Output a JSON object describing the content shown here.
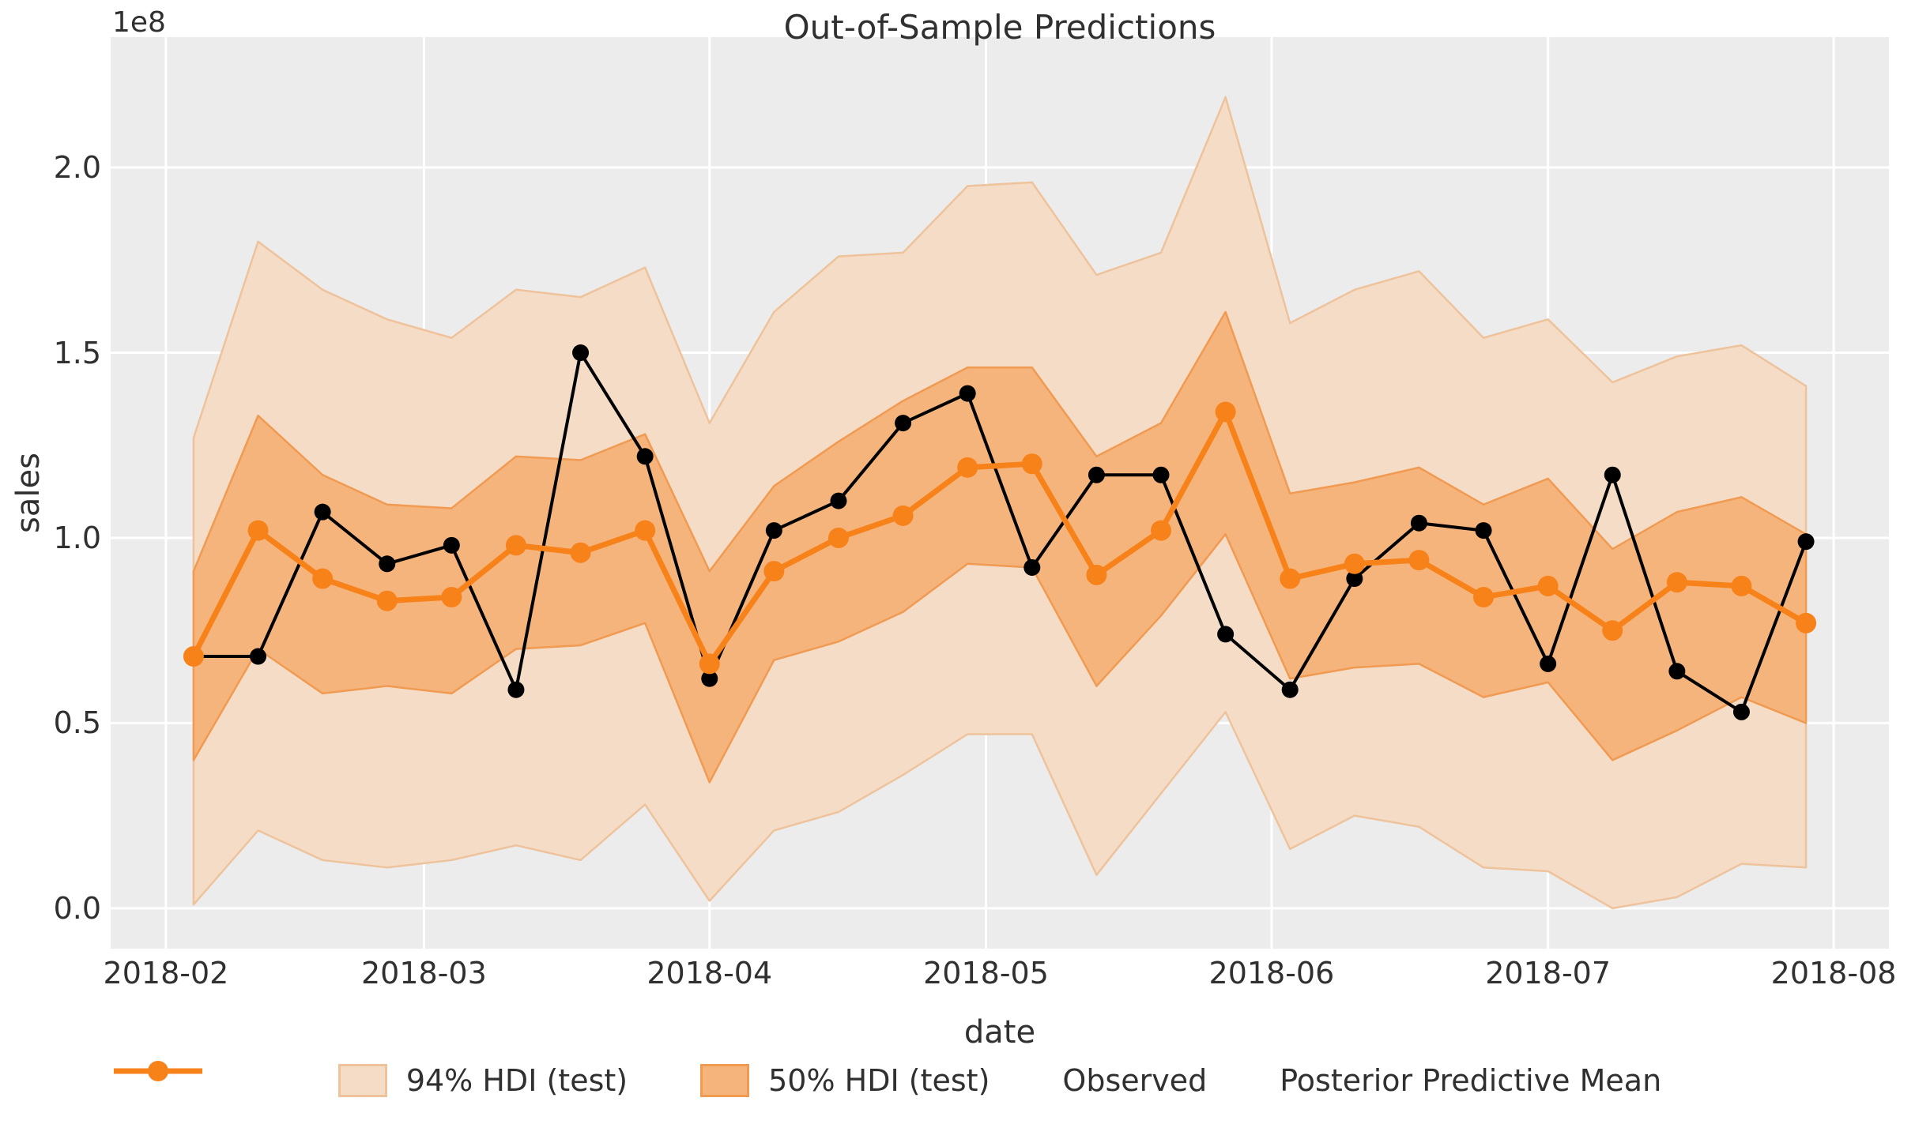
{
  "title": "Out-of-Sample Predictions",
  "axes": {
    "xlabel": "date",
    "ylabel": "sales",
    "y_offset_label": "1e8",
    "y_tick_labels": [
      "0.0",
      "0.5",
      "1.0",
      "1.5",
      "2.0"
    ]
  },
  "colors": {
    "figure_background": "#ffffff",
    "axes_background": "#ececec",
    "gridline": "#ffffff",
    "hdi94_fill": "#f4dcc6",
    "hdi94_edge": "#eec39c",
    "hdi50_fill": "#f5b47c",
    "hdi50_edge": "#f09a52",
    "observed": "#000000",
    "posterior_mean": "#f8821a",
    "text": "#303030"
  },
  "legend": {
    "items": [
      {
        "label": "94% HDI (test)",
        "type": "patch",
        "fill": "#f4dcc6",
        "edge": "#eec39c"
      },
      {
        "label": "50% HDI (test)",
        "type": "patch",
        "fill": "#f5b47c",
        "edge": "#f09a52"
      },
      {
        "label": "Observed",
        "type": "line",
        "color": "#000000",
        "linewidth": 4,
        "radius": 11
      },
      {
        "label": "Posterior Predictive Mean",
        "type": "line",
        "color": "#f8821a",
        "linewidth": 7,
        "radius": 13
      }
    ]
  },
  "chart_data": {
    "type": "line",
    "title": "Out-of-Sample Predictions",
    "xlabel": "date",
    "ylabel": "sales",
    "y_scale_factor": "1e8",
    "grid": true,
    "legend_position": "lower center outside",
    "x": [
      "2018-02-04",
      "2018-02-11",
      "2018-02-18",
      "2018-02-25",
      "2018-03-04",
      "2018-03-11",
      "2018-03-18",
      "2018-03-25",
      "2018-04-01",
      "2018-04-08",
      "2018-04-15",
      "2018-04-22",
      "2018-04-29",
      "2018-05-06",
      "2018-05-13",
      "2018-05-20",
      "2018-05-27",
      "2018-06-03",
      "2018-06-10",
      "2018-06-17",
      "2018-06-24",
      "2018-07-01",
      "2018-07-08",
      "2018-07-15",
      "2018-07-22",
      "2018-07-29"
    ],
    "x_days_since_2018_02_01": [
      3,
      10,
      17,
      24,
      31,
      38,
      45,
      52,
      59,
      66,
      73,
      80,
      87,
      94,
      101,
      108,
      115,
      122,
      129,
      136,
      143,
      150,
      157,
      164,
      171,
      178
    ],
    "series": [
      {
        "name": "94% HDI (test)",
        "type": "band",
        "lower": [
          0.01,
          0.21,
          0.13,
          0.11,
          0.13,
          0.17,
          0.13,
          0.28,
          0.02,
          0.21,
          0.26,
          0.36,
          0.47,
          0.47,
          0.09,
          0.31,
          0.53,
          0.16,
          0.25,
          0.22,
          0.11,
          0.1,
          0.0,
          0.03,
          0.12,
          0.11
        ],
        "upper": [
          1.27,
          1.8,
          1.67,
          1.59,
          1.54,
          1.67,
          1.65,
          1.73,
          1.31,
          1.61,
          1.76,
          1.77,
          1.95,
          1.96,
          1.71,
          1.77,
          2.19,
          1.58,
          1.67,
          1.72,
          1.54,
          1.59,
          1.42,
          1.49,
          1.52,
          1.41
        ]
      },
      {
        "name": "50% HDI (test)",
        "type": "band",
        "lower": [
          0.4,
          0.7,
          0.58,
          0.6,
          0.58,
          0.7,
          0.71,
          0.77,
          0.34,
          0.67,
          0.72,
          0.8,
          0.93,
          0.92,
          0.6,
          0.79,
          1.01,
          0.62,
          0.65,
          0.66,
          0.57,
          0.61,
          0.4,
          0.48,
          0.57,
          0.5
        ],
        "upper": [
          0.91,
          1.33,
          1.17,
          1.09,
          1.08,
          1.22,
          1.21,
          1.28,
          0.91,
          1.14,
          1.26,
          1.37,
          1.46,
          1.46,
          1.22,
          1.31,
          1.61,
          1.12,
          1.15,
          1.19,
          1.09,
          1.16,
          0.97,
          1.07,
          1.11,
          1.01
        ]
      },
      {
        "name": "Observed",
        "type": "line",
        "values": [
          0.68,
          0.68,
          1.07,
          0.93,
          0.98,
          0.59,
          1.5,
          1.22,
          0.62,
          1.02,
          1.1,
          1.31,
          1.39,
          0.92,
          1.17,
          1.17,
          0.74,
          0.59,
          0.89,
          1.04,
          1.02,
          0.66,
          1.17,
          0.64,
          0.53,
          0.99
        ]
      },
      {
        "name": "Posterior Predictive Mean",
        "type": "line",
        "values": [
          0.68,
          1.02,
          0.89,
          0.83,
          0.84,
          0.98,
          0.96,
          1.02,
          0.66,
          0.91,
          1.0,
          1.06,
          1.19,
          1.2,
          0.9,
          1.02,
          1.34,
          0.89,
          0.93,
          0.94,
          0.84,
          0.87,
          0.75,
          0.88,
          0.87,
          0.77
        ]
      }
    ],
    "x_ticks": [
      {
        "day": 0,
        "label": "2018-02"
      },
      {
        "day": 28,
        "label": "2018-03"
      },
      {
        "day": 59,
        "label": "2018-04"
      },
      {
        "day": 89,
        "label": "2018-05"
      },
      {
        "day": 120,
        "label": "2018-06"
      },
      {
        "day": 150,
        "label": "2018-07"
      },
      {
        "day": 181,
        "label": "2018-08"
      }
    ],
    "y_ticks": [
      0.0,
      0.5,
      1.0,
      1.5,
      2.0
    ],
    "xlim_days": [
      -6.0,
      187.0
    ],
    "ylim": [
      -0.109,
      2.352
    ]
  }
}
